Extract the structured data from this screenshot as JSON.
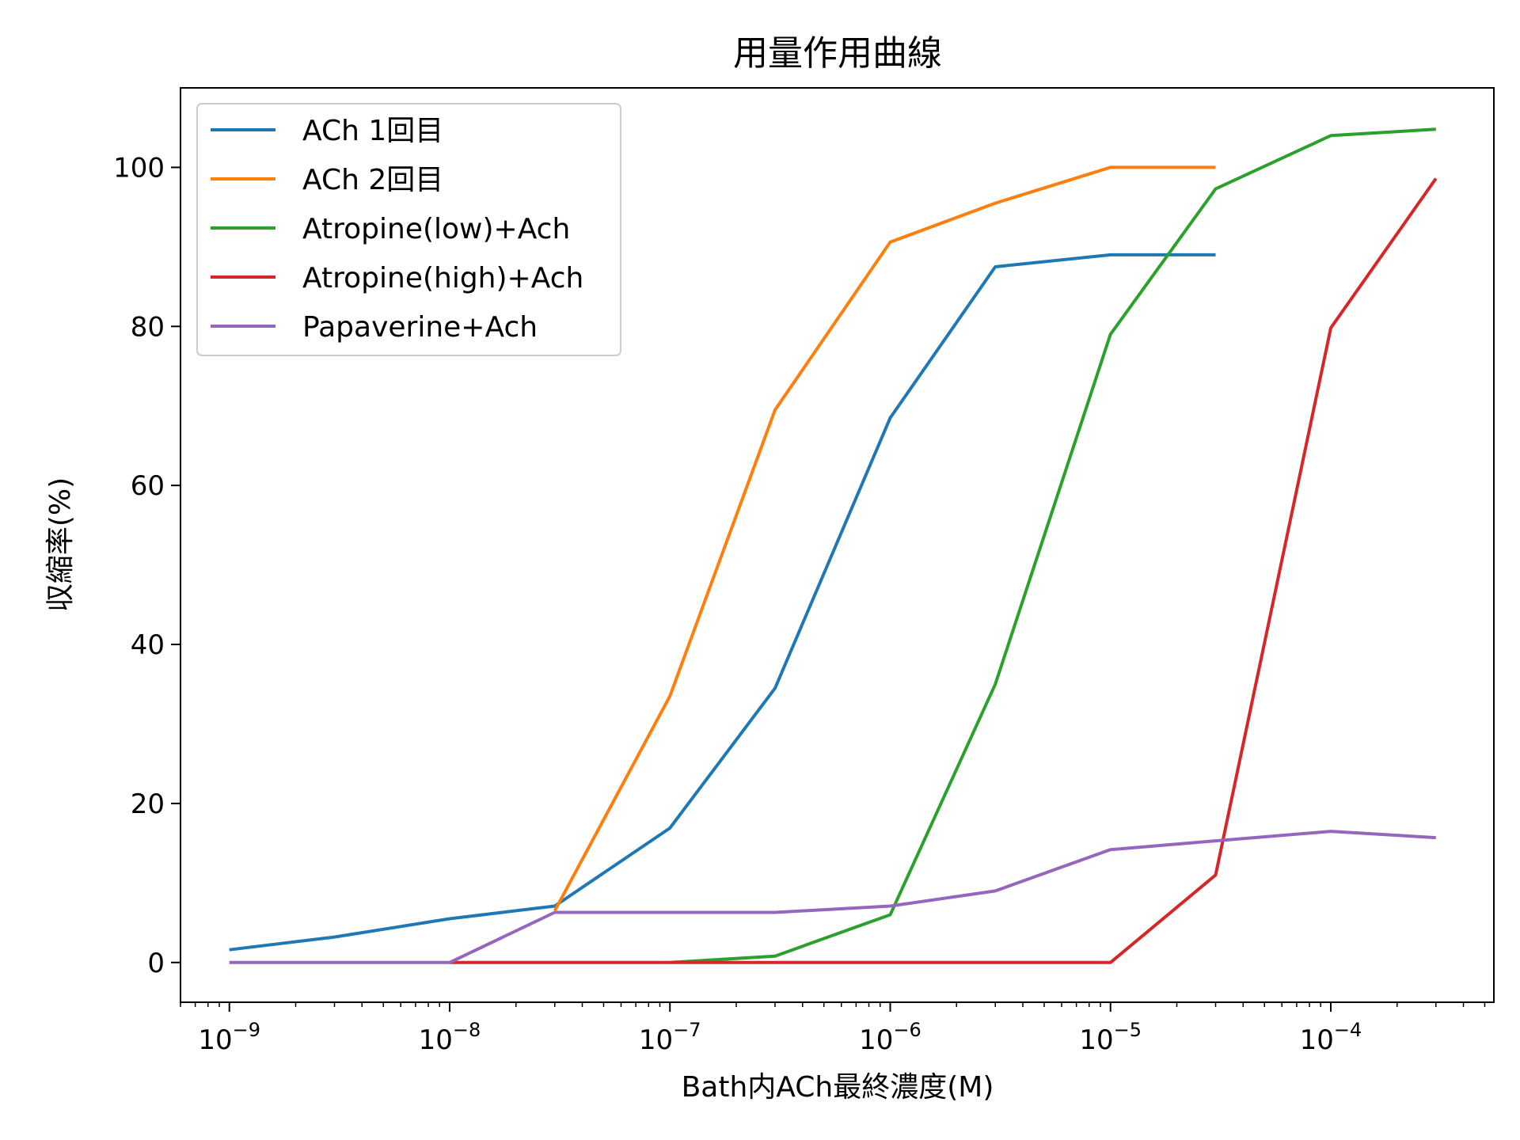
{
  "chart_data": {
    "type": "line",
    "title": "用量作用曲線",
    "xlabel": "Bath内ACh最終濃度(M)",
    "ylabel": "収縮率(%)",
    "xscale": "log",
    "xlim": [
      6e-10,
      0.00055
    ],
    "ylim": [
      -5,
      110
    ],
    "grid": false,
    "legend_position": "top-left",
    "x_ticks": [
      {
        "value": 1e-09,
        "base": "10",
        "exp": "−9"
      },
      {
        "value": 1e-08,
        "base": "10",
        "exp": "−8"
      },
      {
        "value": 1e-07,
        "base": "10",
        "exp": "−7"
      },
      {
        "value": 1e-06,
        "base": "10",
        "exp": "−6"
      },
      {
        "value": 1e-05,
        "base": "10",
        "exp": "−5"
      },
      {
        "value": 0.0001,
        "base": "10",
        "exp": "−4"
      }
    ],
    "y_ticks": [
      {
        "value": 0,
        "label": "0"
      },
      {
        "value": 20,
        "label": "20"
      },
      {
        "value": 40,
        "label": "40"
      },
      {
        "value": 60,
        "label": "60"
      },
      {
        "value": 80,
        "label": "80"
      },
      {
        "value": 100,
        "label": "100"
      }
    ],
    "series": [
      {
        "name": "ACh 1回目",
        "color": "#1f77b4",
        "x": [
          1e-09,
          3e-09,
          1e-08,
          3e-08,
          1e-07,
          3e-07,
          1e-06,
          3e-06,
          1e-05,
          3e-05
        ],
        "y": [
          1.6,
          3.2,
          5.5,
          7.1,
          16.9,
          34.5,
          68.5,
          87.5,
          89.0,
          89.0
        ]
      },
      {
        "name": "ACh 2回目",
        "color": "#ff7f0e",
        "x": [
          3e-08,
          1e-07,
          3e-07,
          1e-06,
          3e-06,
          1e-05,
          3e-05
        ],
        "y": [
          6.5,
          33.5,
          69.5,
          90.6,
          95.5,
          100.0,
          100.0
        ]
      },
      {
        "name": "Atropine(low)+Ach",
        "color": "#2ca02c",
        "x": [
          1e-07,
          3e-07,
          1e-06,
          3e-06,
          1e-05,
          3e-05,
          0.0001,
          0.0003
        ],
        "y": [
          0.0,
          0.8,
          6.0,
          35.0,
          79.0,
          97.3,
          104.0,
          104.8
        ]
      },
      {
        "name": "Atropine(high)+Ach",
        "color": "#d62728",
        "x": [
          1e-08,
          3e-08,
          1e-07,
          3e-07,
          1e-06,
          3e-06,
          1e-05,
          3e-05,
          0.0001,
          0.0003
        ],
        "y": [
          0.0,
          0.0,
          0.0,
          0.0,
          0.0,
          0.0,
          0.0,
          11.0,
          79.8,
          98.6
        ]
      },
      {
        "name": "Papaverine+Ach",
        "color": "#9467bd",
        "x": [
          1e-09,
          3e-09,
          1e-08,
          3e-08,
          1e-07,
          3e-07,
          1e-06,
          3e-06,
          1e-05,
          3e-05,
          0.0001,
          0.0003
        ],
        "y": [
          0.0,
          0.0,
          0.0,
          6.3,
          6.3,
          6.3,
          7.1,
          9.0,
          14.2,
          15.3,
          16.5,
          15.7
        ]
      }
    ]
  }
}
